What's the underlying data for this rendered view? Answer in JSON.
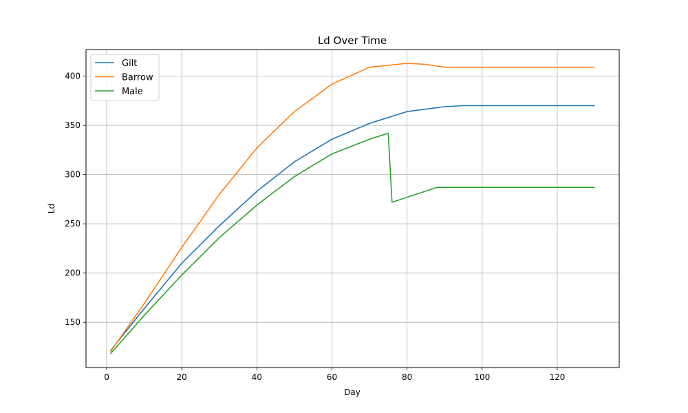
{
  "chart_data": {
    "type": "line",
    "title": "Ld Over Time",
    "xlabel": "Day",
    "ylabel": "Ld",
    "xlim": [
      -5.5,
      136.5
    ],
    "ylim": [
      104,
      427
    ],
    "xticks": [
      0,
      20,
      40,
      60,
      80,
      100,
      120
    ],
    "yticks": [
      150,
      200,
      250,
      300,
      350,
      400
    ],
    "grid": true,
    "legend_position": "upper-left",
    "series": [
      {
        "name": "Gilt",
        "color": "#1f77b4",
        "x": [
          1,
          10,
          20,
          30,
          40,
          50,
          60,
          70,
          80,
          90,
          95,
          100,
          110,
          120,
          130
        ],
        "y": [
          121,
          164,
          210,
          248,
          283,
          313,
          336,
          352,
          364,
          369,
          370,
          370,
          370,
          370,
          370
        ]
      },
      {
        "name": "Barrow",
        "color": "#ff7f0e",
        "x": [
          1,
          10,
          20,
          30,
          40,
          50,
          60,
          70,
          80,
          85,
          90,
          100,
          110,
          120,
          130
        ],
        "y": [
          120,
          169,
          226,
          280,
          327,
          364,
          392,
          409,
          413,
          412,
          409,
          409,
          409,
          409,
          409
        ]
      },
      {
        "name": "Male",
        "color": "#2ca02c",
        "x": [
          1,
          10,
          20,
          30,
          40,
          50,
          60,
          70,
          75,
          76,
          80,
          88,
          100,
          110,
          120,
          130
        ],
        "y": [
          118,
          157,
          198,
          236,
          269,
          298,
          321,
          336,
          342,
          272,
          277,
          287,
          287,
          287,
          287,
          287
        ]
      }
    ]
  }
}
